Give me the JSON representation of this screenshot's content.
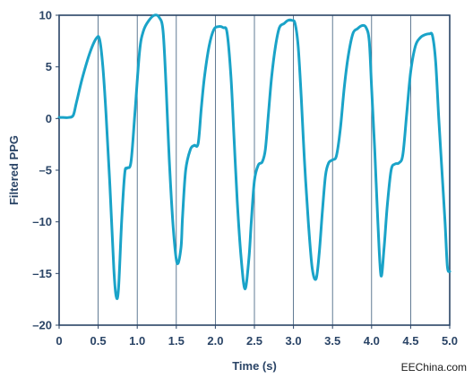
{
  "chart_data": {
    "type": "line",
    "xlabel": "Time (s)",
    "ylabel": "Filtered PPG",
    "xlim": [
      0,
      5.0
    ],
    "ylim": [
      -20,
      10
    ],
    "x_ticks": [
      0,
      0.5,
      1.0,
      1.5,
      2.0,
      2.5,
      3.0,
      3.5,
      4.0,
      4.5,
      5.0
    ],
    "x_tick_labels": [
      "0",
      "0.5",
      "1.0",
      "1.5",
      "2.0",
      "2.5",
      "3.0",
      "3.5",
      "4.0",
      "4.5",
      "5.0"
    ],
    "y_ticks": [
      10,
      5,
      0,
      -5,
      -10,
      -15,
      -20
    ],
    "y_tick_labels": [
      "10",
      "5",
      "0",
      "–5",
      "–10",
      "–15",
      "–20"
    ],
    "grid": "vertical",
    "color": "#1aa3c8",
    "series": [
      {
        "x": [
          0,
          0.05,
          0.12,
          0.18,
          0.22,
          0.3,
          0.4,
          0.48,
          0.52,
          0.56,
          0.6,
          0.65,
          0.7,
          0.73,
          0.76,
          0.8,
          0.84,
          0.87,
          0.92,
          0.97,
          1.03,
          1.08,
          1.15,
          1.22,
          1.28,
          1.33,
          1.37,
          1.41,
          1.46,
          1.51,
          1.56,
          1.58,
          1.62,
          1.68,
          1.73,
          1.78,
          1.82,
          1.86,
          1.92,
          1.98,
          2.04,
          2.1,
          2.15,
          2.2,
          2.24,
          2.28,
          2.33,
          2.38,
          2.43,
          2.46,
          2.5,
          2.55,
          2.6,
          2.64,
          2.68,
          2.72,
          2.77,
          2.82,
          2.88,
          2.93,
          2.98,
          3.02,
          3.06,
          3.1,
          3.14,
          3.19,
          3.24,
          3.29,
          3.33,
          3.37,
          3.41,
          3.45,
          3.5,
          3.55,
          3.6,
          3.65,
          3.7,
          3.76,
          3.82,
          3.88,
          3.93,
          3.97,
          4.0,
          4.04,
          4.08,
          4.12,
          4.16,
          4.2,
          4.25,
          4.3,
          4.35,
          4.4,
          4.45,
          4.5,
          4.56,
          4.62,
          4.68,
          4.74,
          4.78,
          4.82,
          4.86,
          4.9,
          4.94,
          4.97,
          5.0
        ],
        "y": [
          0.1,
          0.1,
          0.1,
          0.3,
          1.5,
          4.0,
          6.5,
          7.8,
          7.6,
          5.0,
          0.5,
          -6.5,
          -14.5,
          -17.2,
          -16.5,
          -10.0,
          -5.3,
          -4.8,
          -4.2,
          0.5,
          6.5,
          8.5,
          9.5,
          10.0,
          9.8,
          8.5,
          3.0,
          -4.0,
          -10.5,
          -14.0,
          -12.5,
          -9.5,
          -5.0,
          -3.0,
          -2.6,
          -2.4,
          1.0,
          4.0,
          7.0,
          8.6,
          8.9,
          8.8,
          8.3,
          4.0,
          -2.0,
          -8.0,
          -13.5,
          -16.5,
          -13.5,
          -10.0,
          -6.0,
          -4.5,
          -4.2,
          -3.0,
          0.5,
          4.0,
          7.0,
          8.8,
          9.2,
          9.5,
          9.5,
          9.2,
          7.0,
          2.0,
          -4.0,
          -10.0,
          -14.5,
          -15.5,
          -13.0,
          -9.0,
          -5.5,
          -4.3,
          -4.0,
          -3.6,
          -1.0,
          3.0,
          6.0,
          8.2,
          8.7,
          9.0,
          8.8,
          7.5,
          3.0,
          -3.0,
          -10.0,
          -15.2,
          -12.5,
          -8.5,
          -5.0,
          -4.4,
          -4.3,
          -3.5,
          0.5,
          4.5,
          7.0,
          7.8,
          8.1,
          8.2,
          8.0,
          5.5,
          0.0,
          -5.0,
          -10.0,
          -14.3,
          -14.8
        ]
      }
    ]
  },
  "watermark": "EEChina.com"
}
